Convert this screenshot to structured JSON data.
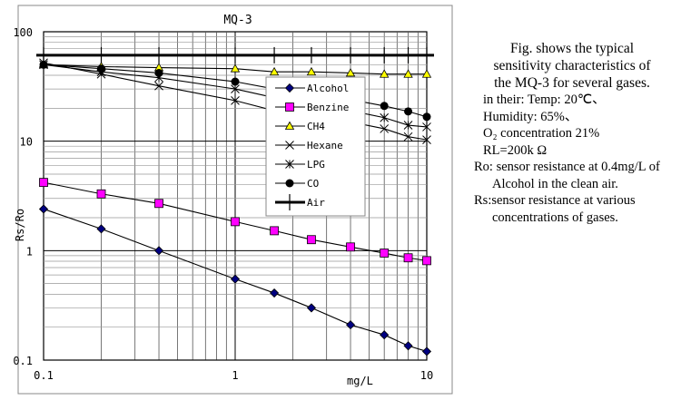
{
  "chart_data": {
    "type": "line",
    "title": "MQ-3",
    "xlabel": "mg/L",
    "ylabel": "Rs/Ro",
    "xscale": "log",
    "yscale": "log",
    "xlim": [
      0.1,
      10
    ],
    "ylim": [
      0.1,
      100
    ],
    "xticks": [
      "0.1",
      "1",
      "10"
    ],
    "yticks": [
      "100",
      "10",
      "1",
      "0.1"
    ],
    "grid": true,
    "legend_position": "center-right",
    "series": [
      {
        "name": "Alcohol",
        "marker": "diamond",
        "color": "#000080",
        "x": [
          0.1,
          0.2,
          0.4,
          1,
          1.6,
          2.5,
          4,
          6,
          8,
          10
        ],
        "y": [
          2.4,
          1.58,
          1.0,
          0.55,
          0.41,
          0.3,
          0.21,
          0.17,
          0.135,
          0.12
        ]
      },
      {
        "name": "Benzine",
        "marker": "square",
        "color": "#ff00ff",
        "x": [
          0.1,
          0.2,
          0.4,
          1,
          1.6,
          2.5,
          4,
          6,
          8,
          10
        ],
        "y": [
          4.2,
          3.3,
          2.7,
          1.84,
          1.52,
          1.26,
          1.08,
          0.95,
          0.86,
          0.81
        ]
      },
      {
        "name": "CH4",
        "marker": "triangle",
        "color": "#ffff00",
        "x": [
          0.1,
          0.2,
          0.4,
          1,
          1.6,
          2.5,
          4,
          6,
          8,
          10
        ],
        "y": [
          50,
          48,
          47,
          46,
          43,
          43,
          42,
          41,
          41,
          41
        ]
      },
      {
        "name": "Hexane",
        "marker": "x",
        "color": "#000000",
        "x": [
          0.1,
          0.2,
          0.4,
          1,
          1.6,
          2.5,
          4,
          6,
          8,
          10
        ],
        "y": [
          52,
          41,
          32,
          23.5,
          19,
          17,
          15,
          13,
          11,
          10.3
        ]
      },
      {
        "name": "LPG",
        "marker": "star",
        "color": "#000000",
        "x": [
          0.1,
          0.2,
          0.4,
          1,
          1.6,
          2.5,
          4,
          6,
          8,
          10
        ],
        "y": [
          50,
          43,
          38,
          30,
          25,
          22,
          19,
          16.4,
          14,
          13.5
        ]
      },
      {
        "name": "CO",
        "marker": "circle",
        "color": "#000000",
        "x": [
          0.1,
          0.2,
          0.4,
          1,
          1.6,
          2.5,
          4,
          6,
          8,
          10
        ],
        "y": [
          50,
          46,
          42,
          35,
          30,
          27,
          24,
          21,
          18.7,
          16.7
        ]
      },
      {
        "name": "Air",
        "marker": "tick",
        "color": "#000000",
        "x": [
          0.1,
          0.2,
          0.4,
          1,
          1.6,
          2.5,
          4,
          6,
          8,
          10
        ],
        "y": [
          61,
          61,
          61,
          61,
          61,
          61,
          61,
          61,
          61,
          61
        ]
      }
    ]
  },
  "note": {
    "caption": [
      "Fig. shows the typical",
      "sensitivity characteristics of",
      "the MQ-3 for several gases."
    ],
    "conditions": [
      "in their: Temp: 20℃、",
      "Humidity: 65%、",
      "O₂ concentration 21%",
      "RL=200k Ω"
    ],
    "ro_label": "Ro: sensor resistance at 0.4mg/L of",
    "ro_cont": "Alcohol in the clean air.",
    "rs_label": "Rs:sensor resistance at various",
    "rs_cont": "concentrations of gases."
  }
}
